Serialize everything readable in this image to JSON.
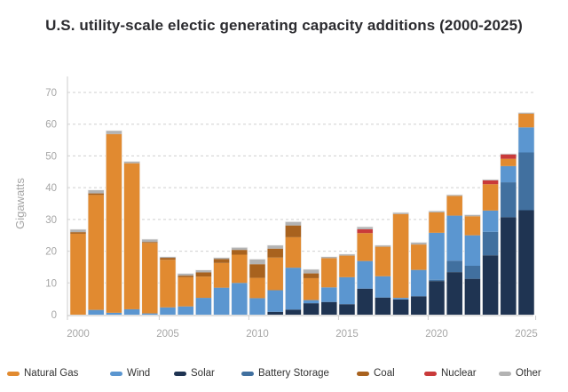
{
  "chart_data": {
    "type": "bar",
    "stacked": true,
    "title": "U.S. utility-scale electic generating capacity additions (2000-2025)",
    "xlabel": "",
    "ylabel": "Gigawatts",
    "ylim": [
      0,
      70
    ],
    "yticks": [
      0,
      10,
      20,
      30,
      40,
      50,
      60,
      70
    ],
    "xticks": [
      2000,
      2005,
      2010,
      2015,
      2020,
      2025
    ],
    "grid": "horizontal-dashed",
    "legend_position": "bottom",
    "categories": [
      2000,
      2001,
      2002,
      2003,
      2004,
      2005,
      2006,
      2007,
      2008,
      2009,
      2010,
      2011,
      2012,
      2013,
      2014,
      2015,
      2016,
      2017,
      2018,
      2019,
      2020,
      2021,
      2022,
      2023,
      2024,
      2025
    ],
    "series": [
      {
        "name": "Solar",
        "color": "#1f3452",
        "values": [
          0,
          0,
          0,
          0,
          0,
          0,
          0,
          0,
          0,
          0,
          0,
          0.9,
          1.6,
          3.6,
          4.0,
          3.3,
          8.2,
          5.4,
          4.8,
          5.8,
          10.6,
          13.4,
          11.3,
          18.7,
          30.7,
          32.9
        ]
      },
      {
        "name": "Battery Storage",
        "color": "#41709f",
        "values": [
          0,
          0,
          0,
          0,
          0,
          0,
          0,
          0,
          0,
          0,
          0,
          0,
          0,
          0,
          0,
          0,
          0,
          0,
          0,
          0,
          0.4,
          3.6,
          4.1,
          7.4,
          11.0,
          18.2
        ]
      },
      {
        "name": "Wind",
        "color": "#5b96d0",
        "values": [
          0,
          1.5,
          0.6,
          1.7,
          0.4,
          2.3,
          2.6,
          5.3,
          8.5,
          10.0,
          5.2,
          6.8,
          13.2,
          1.0,
          4.6,
          8.5,
          8.7,
          6.7,
          0.5,
          8.3,
          14.8,
          14.2,
          9.6,
          6.7,
          5.1,
          7.9
        ]
      },
      {
        "name": "Natural Gas",
        "color": "#e18a30",
        "values": [
          25.5,
          36.2,
          56.3,
          46.0,
          22.2,
          15.0,
          9.2,
          6.7,
          7.8,
          8.9,
          6.4,
          10.3,
          9.6,
          6.9,
          9.2,
          6.8,
          8.8,
          9.3,
          26.4,
          8.0,
          6.4,
          6.2,
          6.0,
          8.3,
          2.3,
          4.3
        ]
      },
      {
        "name": "Coal",
        "color": "#a8621e",
        "values": [
          0.5,
          0.5,
          0,
          0,
          0.3,
          0.6,
          0.5,
          1.3,
          1.2,
          1.5,
          4.3,
          2.8,
          3.7,
          1.5,
          0,
          0,
          0,
          0,
          0,
          0,
          0,
          0,
          0,
          0,
          0,
          0
        ]
      },
      {
        "name": "Nuclear",
        "color": "#c93a3a",
        "values": [
          0,
          0,
          0,
          0,
          0,
          0,
          0,
          0,
          0,
          0,
          0,
          0,
          0,
          0,
          0,
          0,
          1.2,
          0,
          0,
          0,
          0,
          0,
          0,
          1.2,
          1.4,
          0
        ]
      },
      {
        "name": "Other",
        "color": "#b3b3b3",
        "values": [
          0.8,
          1.0,
          1.0,
          0.5,
          0.8,
          0.3,
          0.6,
          0.7,
          0.4,
          0.7,
          1.5,
          1.0,
          1.1,
          1.2,
          0.4,
          0.4,
          0.7,
          0.4,
          0.4,
          0.6,
          0.4,
          0.3,
          0.4,
          0.2,
          0.1,
          0.3
        ]
      }
    ],
    "legend_order": [
      "Natural Gas",
      "Wind",
      "Solar",
      "Battery Storage",
      "Coal",
      "Nuclear",
      "Other"
    ]
  }
}
